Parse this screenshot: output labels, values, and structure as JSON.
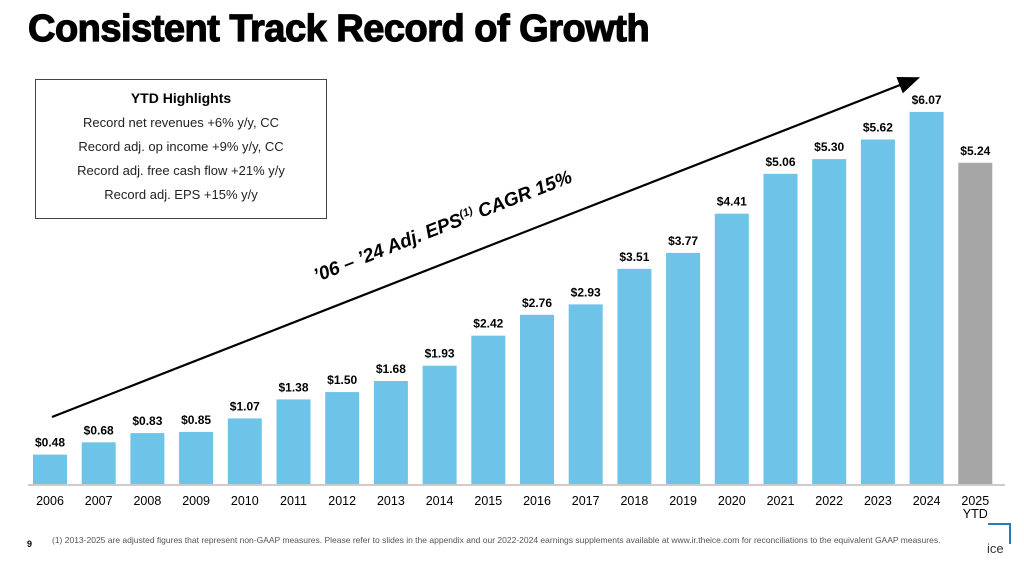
{
  "title": "Consistent Track Record of Growth",
  "highlights": {
    "heading": "YTD Highlights",
    "items": [
      "Record net revenues +6% y/y, CC",
      "Record adj. op income +9% y/y, CC",
      "Record adj. free cash flow +21% y/y",
      "Record adj. EPS +15% y/y"
    ]
  },
  "chart_data": {
    "type": "bar",
    "categories": [
      "2006",
      "2007",
      "2008",
      "2009",
      "2010",
      "2011",
      "2012",
      "2013",
      "2014",
      "2015",
      "2016",
      "2017",
      "2018",
      "2019",
      "2020",
      "2021",
      "2022",
      "2023",
      "2024",
      "2025 YTD"
    ],
    "values": [
      0.48,
      0.68,
      0.83,
      0.85,
      1.07,
      1.38,
      1.5,
      1.68,
      1.93,
      2.42,
      2.76,
      2.93,
      3.51,
      3.77,
      4.41,
      5.06,
      5.3,
      5.62,
      6.07,
      5.24
    ],
    "labels": [
      "$0.48",
      "$0.68",
      "$0.83",
      "$0.85",
      "$1.07",
      "$1.38",
      "$1.50",
      "$1.68",
      "$1.93",
      "$2.42",
      "$2.76",
      "$2.93",
      "$3.51",
      "$3.77",
      "$4.41",
      "$5.06",
      "$5.30",
      "$5.62",
      "$6.07",
      "$5.24"
    ],
    "colors": {
      "actual": "#6EC3E8",
      "ytd": "#A6A6A6"
    },
    "annotation_parts": {
      "pre": "’06 – ’24 Adj. EPS",
      "sup": "(1)",
      "post": " CAGR 15%"
    }
  },
  "footer": {
    "page": "9",
    "note": "(1) 2013-2025 are adjusted figures that represent non-GAAP measures. Please refer to slides in the appendix and our 2022-2024 earnings supplements available at www.ir.theice.com for reconciliations to the equivalent GAAP measures.",
    "logo": "ice"
  }
}
